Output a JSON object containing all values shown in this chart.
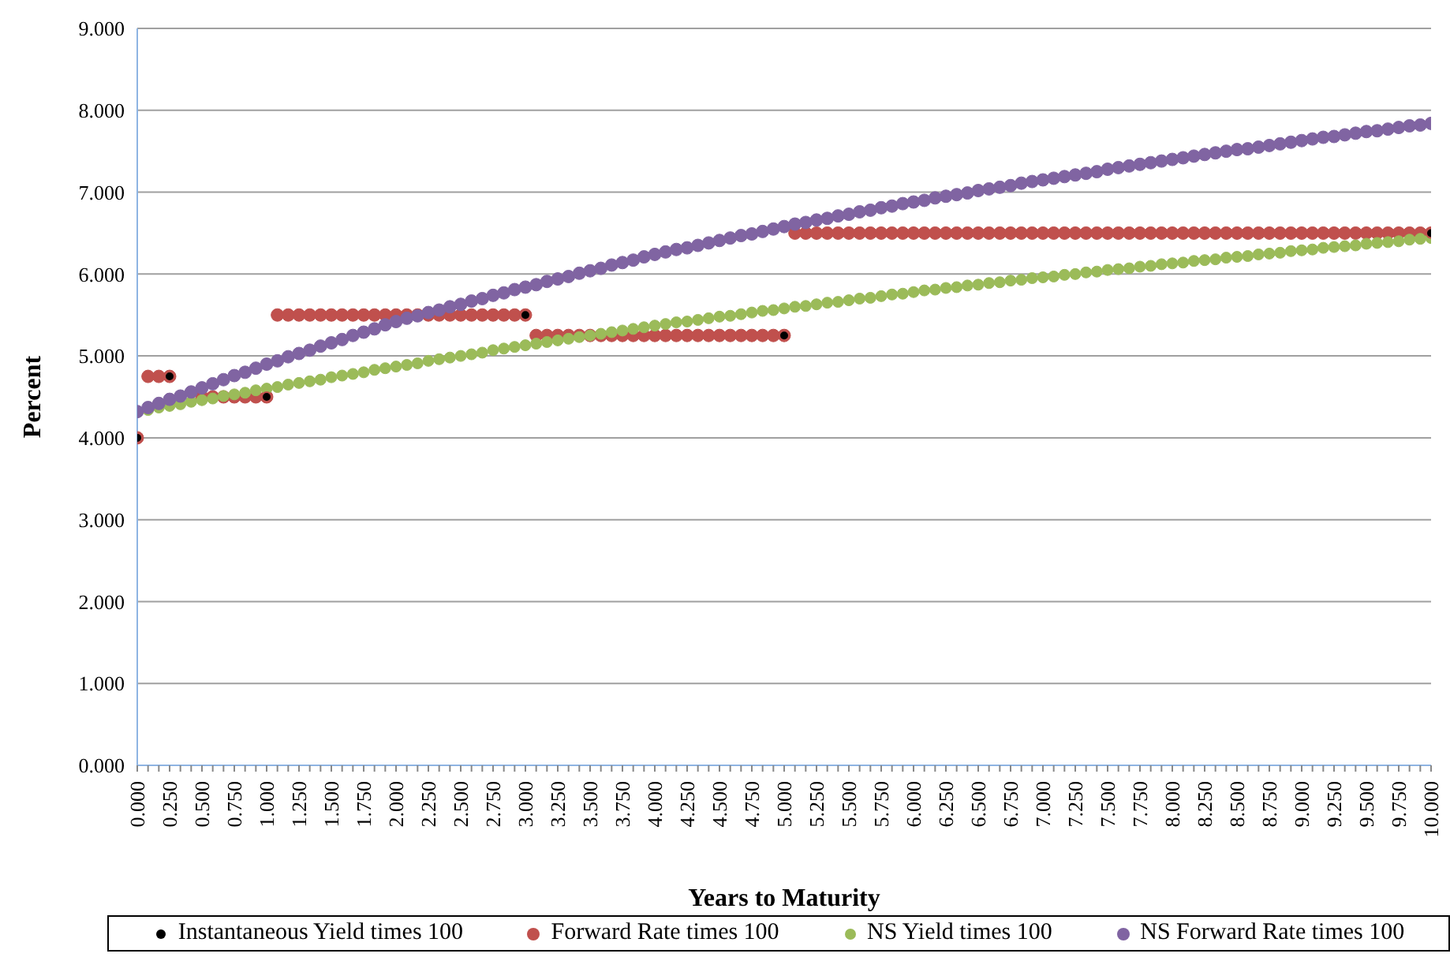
{
  "chart_data": {
    "type": "scatter",
    "xlabel": "Years to Maturity",
    "ylabel": "Percent",
    "categories": [
      "0.000",
      null,
      null,
      "0.250",
      null,
      null,
      "0.500",
      null,
      null,
      "0.750",
      null,
      null,
      "1.000",
      null,
      null,
      "1.250",
      null,
      null,
      "1.500",
      null,
      null,
      "1.750",
      null,
      null,
      "2.000",
      null,
      null,
      "2.250",
      null,
      null,
      "2.500",
      null,
      null,
      "2.750",
      null,
      null,
      "3.000",
      null,
      null,
      "3.250",
      null,
      null,
      "3.500",
      null,
      null,
      "3.750",
      null,
      null,
      "4.000",
      null,
      null,
      "4.250",
      null,
      null,
      "4.500",
      null,
      null,
      "4.750",
      null,
      null,
      "5.000",
      null,
      null,
      "5.250",
      null,
      null,
      "5.500",
      null,
      null,
      "5.750",
      null,
      null,
      "6.000",
      null,
      null,
      "6.250",
      null,
      null,
      "6.500",
      null,
      null,
      "6.750",
      null,
      null,
      "7.000",
      null,
      null,
      "7.250",
      null,
      null,
      "7.500",
      null,
      null,
      "7.750",
      null,
      null,
      "8.000",
      null,
      null,
      "8.250",
      null,
      null,
      "8.500",
      null,
      null,
      "8.750",
      null,
      null,
      "9.000",
      null,
      null,
      "9.250",
      null,
      null,
      "9.500",
      null,
      null,
      "9.750",
      null,
      null,
      "10.000"
    ],
    "series": [
      {
        "name": "Instantaneous Yield times 100",
        "color": "#000000",
        "values": [
          4.0,
          null,
          null,
          4.75,
          null,
          null,
          null,
          null,
          null,
          null,
          null,
          null,
          4.5,
          null,
          null,
          null,
          null,
          null,
          null,
          null,
          null,
          null,
          null,
          null,
          null,
          null,
          null,
          null,
          null,
          null,
          null,
          null,
          null,
          null,
          null,
          null,
          5.5,
          null,
          null,
          null,
          null,
          null,
          null,
          null,
          null,
          null,
          null,
          null,
          null,
          null,
          null,
          null,
          null,
          null,
          null,
          null,
          null,
          null,
          null,
          null,
          5.25,
          null,
          null,
          null,
          null,
          null,
          null,
          null,
          null,
          null,
          null,
          null,
          null,
          null,
          null,
          null,
          null,
          null,
          null,
          null,
          null,
          null,
          null,
          null,
          null,
          null,
          null,
          null,
          null,
          null,
          null,
          null,
          null,
          null,
          null,
          null,
          null,
          null,
          null,
          null,
          null,
          null,
          null,
          null,
          null,
          null,
          null,
          null,
          null,
          null,
          null,
          null,
          null,
          null,
          null,
          null,
          null,
          null,
          null,
          null,
          6.5
        ]
      },
      {
        "name": "Forward Rate times 100",
        "color": "#c0504d",
        "values": [
          4.0,
          4.75,
          4.75,
          4.75,
          null,
          null,
          4.5,
          4.5,
          4.5,
          4.5,
          4.5,
          4.5,
          4.5,
          5.5,
          5.5,
          5.5,
          5.5,
          5.5,
          5.5,
          5.5,
          5.5,
          5.5,
          5.5,
          5.5,
          5.5,
          5.5,
          5.5,
          5.5,
          5.5,
          5.5,
          5.5,
          5.5,
          5.5,
          5.5,
          5.5,
          5.5,
          5.5,
          5.25,
          5.25,
          5.25,
          5.25,
          5.25,
          5.25,
          5.25,
          5.25,
          5.25,
          5.25,
          5.25,
          5.25,
          5.25,
          5.25,
          5.25,
          5.25,
          5.25,
          5.25,
          5.25,
          5.25,
          5.25,
          5.25,
          5.25,
          5.25,
          6.5,
          6.5,
          6.5,
          6.5,
          6.5,
          6.5,
          6.5,
          6.5,
          6.5,
          6.5,
          6.5,
          6.5,
          6.5,
          6.5,
          6.5,
          6.5,
          6.5,
          6.5,
          6.5,
          6.5,
          6.5,
          6.5,
          6.5,
          6.5,
          6.5,
          6.5,
          6.5,
          6.5,
          6.5,
          6.5,
          6.5,
          6.5,
          6.5,
          6.5,
          6.5,
          6.5,
          6.5,
          6.5,
          6.5,
          6.5,
          6.5,
          6.5,
          6.5,
          6.5,
          6.5,
          6.5,
          6.5,
          6.5,
          6.5,
          6.5,
          6.5,
          6.5,
          6.5,
          6.5,
          6.5,
          6.5,
          6.5,
          6.5,
          6.5,
          6.5
        ]
      },
      {
        "name": "NS Yield times 100",
        "color": "#9bbb59",
        "values": [
          null,
          4.34,
          4.37,
          4.39,
          4.41,
          4.44,
          4.46,
          4.48,
          4.51,
          4.53,
          4.55,
          4.58,
          4.6,
          4.62,
          4.65,
          4.67,
          4.69,
          4.71,
          4.74,
          4.76,
          4.78,
          4.8,
          4.83,
          4.85,
          4.87,
          4.89,
          4.91,
          4.94,
          4.96,
          4.98,
          5.0,
          5.02,
          5.04,
          5.07,
          5.09,
          5.11,
          5.13,
          5.15,
          5.17,
          5.19,
          5.21,
          5.23,
          5.25,
          5.27,
          5.29,
          5.31,
          5.33,
          5.35,
          5.37,
          5.39,
          5.41,
          5.42,
          5.44,
          5.46,
          5.48,
          5.49,
          5.51,
          5.53,
          5.55,
          5.56,
          5.58,
          5.6,
          5.61,
          5.63,
          5.65,
          5.66,
          5.68,
          5.7,
          5.71,
          5.73,
          5.75,
          5.76,
          5.78,
          5.8,
          5.81,
          5.83,
          5.84,
          5.86,
          5.87,
          5.89,
          5.9,
          5.92,
          5.93,
          5.95,
          5.96,
          5.97,
          5.99,
          6.0,
          6.02,
          6.03,
          6.05,
          6.06,
          6.07,
          6.09,
          6.1,
          6.12,
          6.13,
          6.14,
          6.16,
          6.17,
          6.18,
          6.2,
          6.21,
          6.22,
          6.24,
          6.25,
          6.26,
          6.28,
          6.29,
          6.3,
          6.32,
          6.33,
          6.34,
          6.35,
          6.37,
          6.38,
          6.39,
          6.4,
          6.42,
          6.43,
          6.44
        ]
      },
      {
        "name": "NS Forward Rate times 100",
        "color": "#8064a2",
        "values": [
          4.32,
          4.37,
          4.42,
          4.47,
          4.51,
          4.56,
          4.61,
          4.66,
          4.71,
          4.76,
          4.8,
          4.85,
          4.9,
          4.94,
          4.99,
          5.03,
          5.07,
          5.12,
          5.16,
          5.2,
          5.25,
          5.29,
          5.33,
          5.38,
          5.42,
          5.46,
          5.49,
          5.53,
          5.56,
          5.6,
          5.63,
          5.67,
          5.7,
          5.74,
          5.77,
          5.81,
          5.84,
          5.87,
          5.91,
          5.94,
          5.97,
          6.01,
          6.04,
          6.07,
          6.11,
          6.14,
          6.17,
          6.21,
          6.24,
          6.27,
          6.3,
          6.32,
          6.35,
          6.38,
          6.41,
          6.44,
          6.47,
          6.49,
          6.52,
          6.55,
          6.58,
          6.61,
          6.63,
          6.66,
          6.68,
          6.71,
          6.73,
          6.76,
          6.78,
          6.81,
          6.83,
          6.86,
          6.88,
          6.9,
          6.93,
          6.95,
          6.97,
          6.99,
          7.02,
          7.04,
          7.06,
          7.08,
          7.11,
          7.13,
          7.15,
          7.17,
          7.19,
          7.21,
          7.23,
          7.25,
          7.28,
          7.3,
          7.32,
          7.34,
          7.36,
          7.38,
          7.4,
          7.42,
          7.44,
          7.46,
          7.48,
          7.5,
          7.52,
          7.53,
          7.55,
          7.57,
          7.59,
          7.61,
          7.63,
          7.65,
          7.67,
          7.68,
          7.7,
          7.72,
          7.74,
          7.75,
          7.77,
          7.79,
          7.81,
          7.82,
          7.84
        ]
      }
    ],
    "ylim": [
      0,
      9
    ],
    "yticks": [
      {
        "value": 0,
        "label": "0.000"
      },
      {
        "value": 1,
        "label": "1.000"
      },
      {
        "value": 2,
        "label": "2.000"
      },
      {
        "value": 3,
        "label": "3.000"
      },
      {
        "value": 4,
        "label": "4.000"
      },
      {
        "value": 5,
        "label": "5.000"
      },
      {
        "value": 6,
        "label": "6.000"
      },
      {
        "value": 7,
        "label": "7.000"
      },
      {
        "value": 8,
        "label": "8.000"
      },
      {
        "value": 9,
        "label": "9.000"
      }
    ],
    "grid": "y",
    "legend": "bottom",
    "marker": "circle"
  }
}
